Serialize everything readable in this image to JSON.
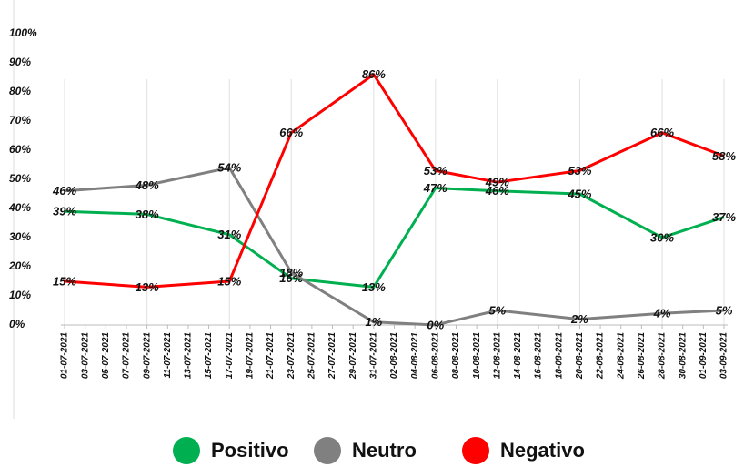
{
  "chart_data": {
    "type": "line",
    "categories": [
      "01-07-2021",
      "03-07-2021",
      "05-07-2021",
      "07-07-2021",
      "09-07-2021",
      "11-07-2021",
      "13-07-2021",
      "15-07-2021",
      "17-07-2021",
      "19-07-2021",
      "21-07-2021",
      "23-07-2021",
      "25-07-2021",
      "27-07-2021",
      "29-07-2021",
      "31-07-2021",
      "02-08-2021",
      "04-08-2021",
      "06-08-2021",
      "08-08-2021",
      "10-08-2021",
      "12-08-2021",
      "14-08-2021",
      "16-08-2021",
      "18-08-2021",
      "20-08-2021",
      "22-08-2021",
      "24-08-2021",
      "26-08-2021",
      "28-08-2021",
      "30-08-2021",
      "01-09-2021",
      "03-09-2021"
    ],
    "x": [
      "01-07-2021",
      "09-07-2021",
      "17-07-2021",
      "23-07-2021",
      "31-07-2021",
      "06-08-2021",
      "12-08-2021",
      "20-08-2021",
      "28-08-2021",
      "03-09-2021"
    ],
    "series": [
      {
        "name": "Positivo",
        "color": "#00b050",
        "values": [
          39,
          38,
          31,
          16,
          13,
          47,
          46,
          45,
          30,
          37
        ],
        "value_labels": [
          "39%",
          "38%",
          "31%",
          "16%",
          "13%",
          "47%",
          "46%",
          "45%",
          "30%",
          "37%"
        ]
      },
      {
        "name": "Neutro",
        "color": "#808080",
        "values": [
          46,
          48,
          54,
          18,
          1,
          0,
          5,
          2,
          4,
          5
        ],
        "value_labels": [
          "46%",
          "48%",
          "54%",
          "18%",
          "1%",
          "0%",
          "5%",
          "2%",
          "4%",
          "5%"
        ]
      },
      {
        "name": "Negativo",
        "color": "#ff0000",
        "values": [
          15,
          13,
          15,
          66,
          86,
          53,
          49,
          53,
          66,
          58
        ],
        "value_labels": [
          "15%",
          "13%",
          "15%",
          "66%",
          "86%",
          "53%",
          "49%",
          "53%",
          "66%",
          "58%"
        ]
      }
    ],
    "ylim": [
      0,
      100
    ],
    "yticks": [
      {
        "value": 0,
        "label": "0%"
      },
      {
        "value": 10,
        "label": "10%"
      },
      {
        "value": 20,
        "label": "20%"
      },
      {
        "value": 30,
        "label": "30%"
      },
      {
        "value": 40,
        "label": "40%"
      },
      {
        "value": 50,
        "label": "50%"
      },
      {
        "value": 60,
        "label": "60%"
      },
      {
        "value": 70,
        "label": "70%"
      },
      {
        "value": 80,
        "label": "80%"
      },
      {
        "value": 90,
        "label": "90%"
      },
      {
        "value": 100,
        "label": "100%"
      }
    ],
    "legend": "bottom"
  }
}
